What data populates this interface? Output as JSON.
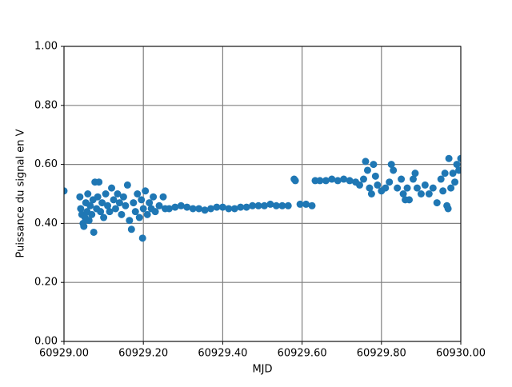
{
  "chart_data": {
    "type": "scatter",
    "xlabel": "MJD",
    "ylabel": "Puissance du signal en V",
    "color": "#1f77b4",
    "grid": true,
    "xlim": [
      60929.0,
      60930.0
    ],
    "xticks": [
      {
        "value": 60929.0,
        "label": "60929.00"
      },
      {
        "value": 60929.2,
        "label": "60929.20"
      },
      {
        "value": 60929.4,
        "label": "60929.40"
      },
      {
        "value": 60929.6,
        "label": "60929.60"
      },
      {
        "value": 60929.8,
        "label": "60929.80"
      },
      {
        "value": 60930.0,
        "label": "60930.00"
      }
    ],
    "ylim": [
      0,
      1
    ],
    "yticks": [
      {
        "value": 0,
        "label": "0.00"
      },
      {
        "value": 0.2,
        "label": "0.20"
      },
      {
        "value": 0.4,
        "label": "0.40"
      },
      {
        "value": 0.6,
        "label": "0.60"
      },
      {
        "value": 0.8,
        "label": "0.80"
      },
      {
        "value": 1,
        "label": "1.00"
      }
    ],
    "x": [
      60929.0,
      60929.04,
      60929.042,
      60929.045,
      60929.048,
      60929.05,
      60929.053,
      60929.055,
      60929.058,
      60929.06,
      60929.063,
      60929.066,
      60929.07,
      60929.073,
      60929.075,
      60929.078,
      60929.082,
      60929.085,
      60929.088,
      60929.092,
      60929.096,
      60929.1,
      60929.105,
      60929.11,
      60929.115,
      60929.12,
      60929.125,
      60929.13,
      60929.135,
      60929.14,
      60929.145,
      60929.15,
      60929.155,
      60929.16,
      60929.165,
      60929.17,
      60929.175,
      60929.18,
      60929.185,
      60929.19,
      60929.195,
      60929.198,
      60929.2,
      60929.205,
      60929.21,
      60929.215,
      60929.22,
      60929.225,
      60929.23,
      60929.24,
      60929.25,
      60929.255,
      60929.265,
      60929.28,
      60929.295,
      60929.31,
      60929.325,
      60929.34,
      60929.355,
      60929.37,
      60929.385,
      60929.4,
      60929.415,
      60929.43,
      60929.445,
      60929.46,
      60929.475,
      60929.49,
      60929.505,
      60929.52,
      60929.535,
      60929.55,
      60929.565,
      60929.58,
      60929.583,
      60929.595,
      60929.61,
      60929.625,
      60929.633,
      60929.645,
      60929.66,
      60929.675,
      60929.69,
      60929.705,
      60929.72,
      60929.735,
      60929.745,
      60929.755,
      60929.76,
      60929.765,
      60929.77,
      60929.775,
      60929.78,
      60929.785,
      60929.79,
      60929.8,
      60929.81,
      60929.82,
      60929.825,
      60929.83,
      60929.84,
      60929.85,
      60929.855,
      60929.86,
      60929.865,
      60929.87,
      60929.88,
      60929.885,
      60929.89,
      60929.9,
      60929.91,
      60929.92,
      60929.93,
      60929.94,
      60929.95,
      60929.955,
      60929.96,
      60929.965,
      60929.968,
      60929.97,
      60929.975,
      60929.98,
      60929.985,
      60929.99,
      60929.995,
      60930.0
    ],
    "values": [
      0.51,
      0.49,
      0.45,
      0.43,
      0.4,
      0.39,
      0.42,
      0.47,
      0.44,
      0.5,
      0.41,
      0.46,
      0.43,
      0.48,
      0.37,
      0.54,
      0.45,
      0.49,
      0.54,
      0.44,
      0.47,
      0.42,
      0.5,
      0.46,
      0.44,
      0.52,
      0.48,
      0.45,
      0.5,
      0.47,
      0.43,
      0.49,
      0.46,
      0.53,
      0.41,
      0.38,
      0.47,
      0.44,
      0.5,
      0.42,
      0.48,
      0.35,
      0.45,
      0.51,
      0.43,
      0.47,
      0.45,
      0.49,
      0.44,
      0.46,
      0.49,
      0.45,
      0.45,
      0.455,
      0.46,
      0.455,
      0.45,
      0.45,
      0.445,
      0.45,
      0.455,
      0.455,
      0.45,
      0.45,
      0.455,
      0.455,
      0.46,
      0.46,
      0.46,
      0.465,
      0.46,
      0.46,
      0.46,
      0.55,
      0.545,
      0.465,
      0.465,
      0.46,
      0.545,
      0.545,
      0.545,
      0.55,
      0.545,
      0.55,
      0.545,
      0.54,
      0.53,
      0.55,
      0.61,
      0.58,
      0.52,
      0.5,
      0.6,
      0.56,
      0.53,
      0.51,
      0.52,
      0.54,
      0.6,
      0.58,
      0.52,
      0.55,
      0.5,
      0.48,
      0.52,
      0.48,
      0.55,
      0.57,
      0.52,
      0.5,
      0.53,
      0.5,
      0.52,
      0.47,
      0.55,
      0.51,
      0.57,
      0.46,
      0.45,
      0.62,
      0.52,
      0.57,
      0.54,
      0.6,
      0.58,
      0.62
    ]
  }
}
